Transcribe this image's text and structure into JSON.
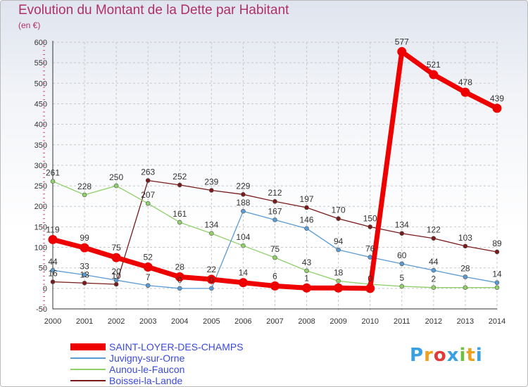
{
  "chart_data": {
    "type": "line",
    "title": "Evolution du Montant de la Dette par Habitant",
    "ylabel": "(en €)",
    "xlabel": "",
    "ylim": [
      -50,
      600
    ],
    "yticks": [
      -50,
      0,
      50,
      100,
      150,
      200,
      250,
      300,
      350,
      400,
      450,
      500,
      550,
      600
    ],
    "x": [
      2000,
      2001,
      2002,
      2003,
      2004,
      2005,
      2006,
      2007,
      2008,
      2009,
      2010,
      2011,
      2012,
      2013,
      2014
    ],
    "series": [
      {
        "name": "Boissei-la-Lande",
        "color": "#7a1a1a",
        "values": [
          16,
          13,
          10,
          263,
          252,
          239,
          229,
          212,
          197,
          170,
          150,
          134,
          122,
          103,
          89
        ],
        "labels": [
          16,
          13,
          10,
          263,
          252,
          239,
          229,
          212,
          197,
          170,
          150,
          134,
          122,
          103,
          89
        ]
      },
      {
        "name": "Aunou-le-Faucon",
        "color": "#8fd06a",
        "values": [
          261,
          228,
          250,
          207,
          161,
          134,
          104,
          75,
          43,
          18,
          10,
          5,
          2,
          2,
          2
        ],
        "labels": [
          261,
          228,
          250,
          207,
          161,
          134,
          104,
          75,
          43,
          18,
          null,
          5,
          2,
          null,
          null
        ]
      },
      {
        "name": "Juvigny-sur-Orne",
        "color": "#5a9bd4",
        "values": [
          44,
          33,
          20,
          7,
          0,
          0,
          188,
          167,
          146,
          94,
          76,
          60,
          44,
          28,
          14
        ],
        "labels": [
          44,
          33,
          20,
          7,
          0,
          0,
          188,
          167,
          146,
          94,
          76,
          60,
          44,
          28,
          14
        ]
      },
      {
        "name": "SAINT-LOYER-DES-CHAMPS",
        "color": "#ee0000",
        "values": [
          119,
          99,
          75,
          52,
          28,
          22,
          14,
          6,
          1,
          1,
          0,
          577,
          521,
          478,
          439
        ],
        "labels": [
          119,
          99,
          75,
          52,
          28,
          22,
          14,
          6,
          1,
          null,
          0,
          577,
          521,
          478,
          439
        ]
      }
    ],
    "legend": [
      "SAINT-LOYER-DES-CHAMPS",
      "Juvigny-sur-Orne",
      "Aunou-le-Faucon",
      "Boissei-la-Lande"
    ],
    "legend_colors": [
      "#ee0000",
      "#5a9bd4",
      "#8fd06a",
      "#7a1a1a"
    ],
    "legend_position": "bottom-left"
  },
  "logo": {
    "letters": [
      "P",
      "r",
      "o",
      "x",
      "i",
      "t",
      "i"
    ],
    "colors": [
      "#3aa0e0",
      "#f0a020",
      "#e03a3a",
      "#3aa0e0",
      "#70c040",
      "#f0a020",
      "#3aa0e0"
    ]
  }
}
